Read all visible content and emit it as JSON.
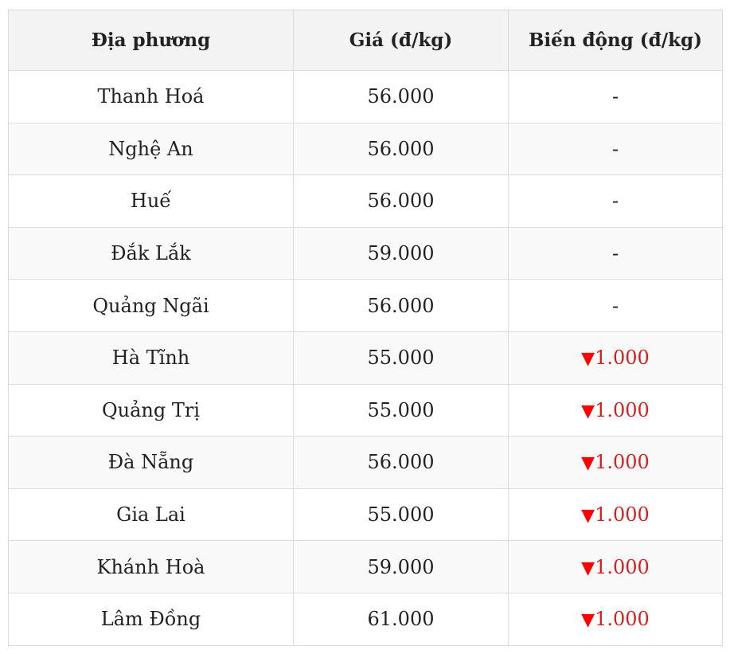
{
  "table": {
    "headers": [
      "Địa phương",
      "Giá (đ/kg)",
      "Biến động (đ/kg)"
    ],
    "rows": [
      {
        "region": "Thanh Hoá",
        "price": "56.000",
        "change": "-",
        "direction": "none"
      },
      {
        "region": "Nghệ An",
        "price": "56.000",
        "change": "-",
        "direction": "none"
      },
      {
        "region": "Huế",
        "price": "56.000",
        "change": "-",
        "direction": "none"
      },
      {
        "region": "Đắk Lắk",
        "price": "59.000",
        "change": "-",
        "direction": "none"
      },
      {
        "region": "Quảng Ngãi",
        "price": "56.000",
        "change": "-",
        "direction": "none"
      },
      {
        "region": "Hà Tĩnh",
        "price": "55.000",
        "change": "1.000",
        "direction": "down"
      },
      {
        "region": "Quảng Trị",
        "price": "55.000",
        "change": "1.000",
        "direction": "down"
      },
      {
        "region": "Đà Nẵng",
        "price": "56.000",
        "change": "1.000",
        "direction": "down"
      },
      {
        "region": "Gia Lai",
        "price": "55.000",
        "change": "1.000",
        "direction": "down"
      },
      {
        "region": "Khánh Hoà",
        "price": "59.000",
        "change": "1.000",
        "direction": "down"
      },
      {
        "region": "Lâm Đồng",
        "price": "61.000",
        "change": "1.000",
        "direction": "down"
      }
    ]
  },
  "icons": {
    "down": "triangle-down-icon"
  },
  "colors": {
    "down": "#d81f1f",
    "header_bg": "#f3f3f3",
    "stripe_bg": "#f9f9f9"
  }
}
